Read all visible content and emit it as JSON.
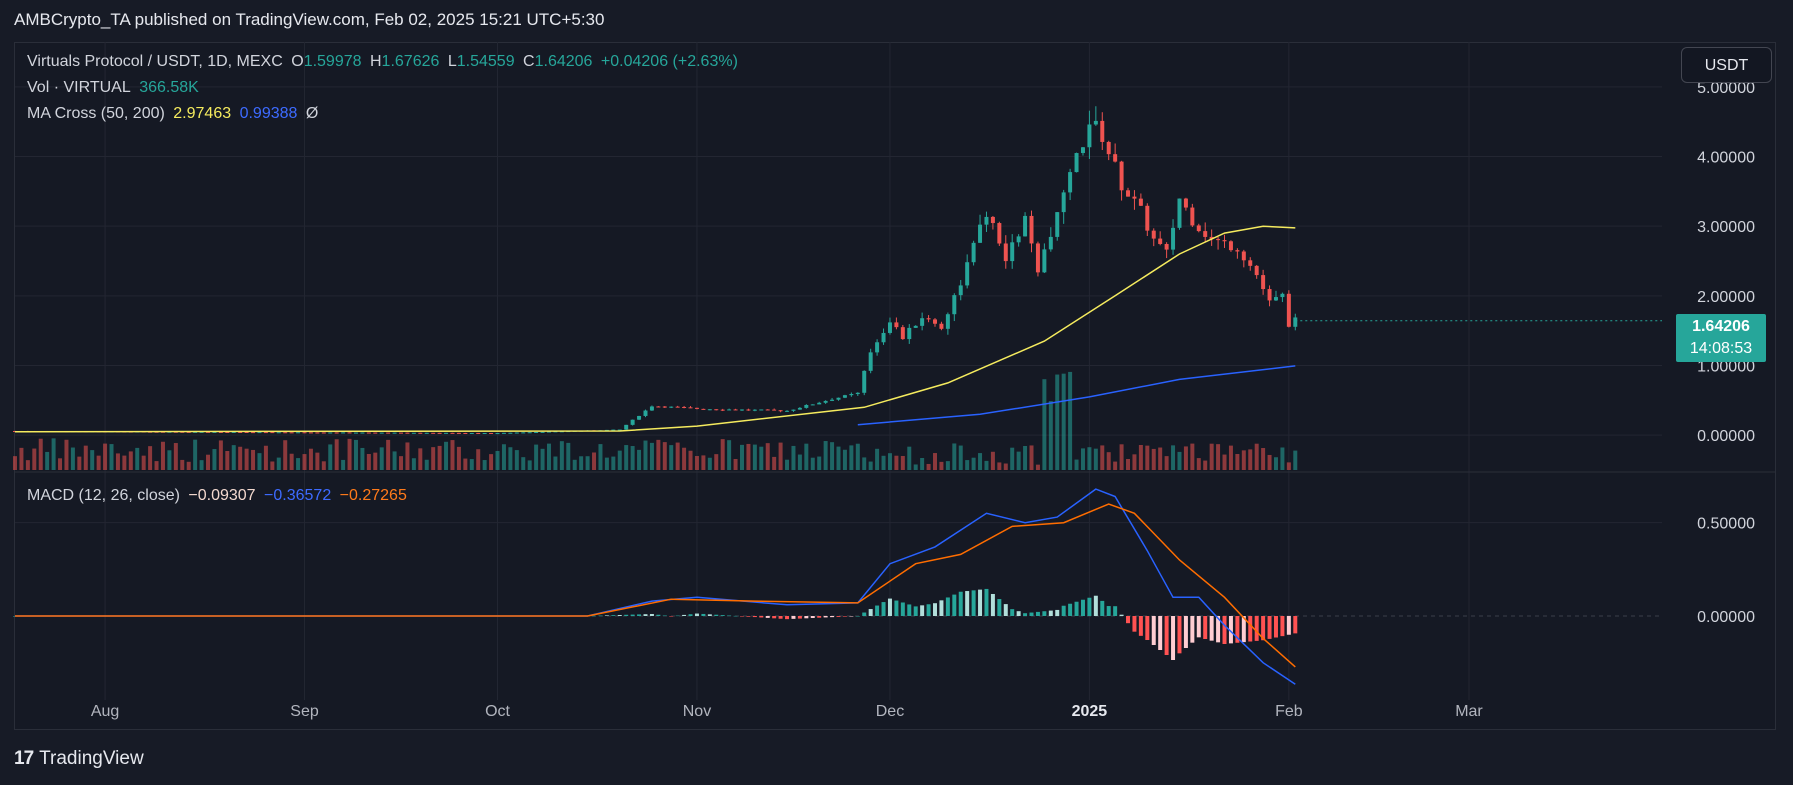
{
  "header": {
    "publisher": "AMBCrypto_TA published on TradingView.com, Feb 02, 2025 15:21 UTC+5:30"
  },
  "legend": {
    "symbol": "Virtuals Protocol / USDT, 1D, MEXC",
    "o_label": "O",
    "o": "1.59978",
    "h_label": "H",
    "h": "1.67626",
    "l_label": "L",
    "l": "1.54559",
    "c_label": "C",
    "c": "1.64206",
    "change": "+0.04206 (+2.63%)",
    "vol_label": "Vol · VIRTUAL",
    "vol": "366.58K",
    "ma_label": "MA Cross (50, 200)",
    "ma50": "2.97463",
    "ma200": "0.99388",
    "ma_extra": "Ø",
    "macd_label": "MACD (12, 26, close)",
    "macd_hist": "−0.09307",
    "macd_line": "−0.36572",
    "macd_signal": "−0.27265"
  },
  "currency_button": "USDT",
  "price_tag": {
    "price": "1.64206",
    "countdown": "14:08:53"
  },
  "footer": {
    "brand": "TradingView",
    "logo_text": "17"
  },
  "colors": {
    "up": "#26a69a",
    "down": "#ef5350",
    "ma50": "#f5eb5e",
    "ma200": "#2962ff",
    "macd": "#2962ff",
    "signal": "#ff6d00"
  },
  "chart_data": [
    {
      "type": "candlestick",
      "title": "Virtuals Protocol / USDT, 1D, MEXC",
      "y_ticks": [
        "5.00000",
        "4.00000",
        "3.00000",
        "2.00000",
        "1.00000",
        "0.00000"
      ],
      "y_tick_values": [
        5,
        4,
        3,
        2,
        1,
        0
      ],
      "ylim": [
        -0.5,
        5.5
      ],
      "x_ticks": [
        {
          "label": "Aug",
          "date": "2024-08-01"
        },
        {
          "label": "Sep",
          "date": "2024-09-01"
        },
        {
          "label": "Oct",
          "date": "2024-10-01"
        },
        {
          "label": "Nov",
          "date": "2024-11-01"
        },
        {
          "label": "Dec",
          "date": "2024-12-01"
        },
        {
          "label": "2025",
          "date": "2025-01-01"
        },
        {
          "label": "Feb",
          "date": "2025-02-01"
        },
        {
          "label": "Mar",
          "date": "2025-03-01"
        }
      ],
      "x_range": [
        "2024-07-18",
        "2025-03-31"
      ],
      "price_path": [
        [
          "2024-07-18",
          0.06
        ],
        [
          "2024-09-01",
          0.04
        ],
        [
          "2024-10-01",
          0.03
        ],
        [
          "2024-10-20",
          0.08
        ],
        [
          "2024-10-25",
          0.42
        ],
        [
          "2024-11-01",
          0.38
        ],
        [
          "2024-11-15",
          0.35
        ],
        [
          "2024-11-22",
          0.52
        ],
        [
          "2024-11-26",
          0.6
        ],
        [
          "2024-11-28",
          1.2
        ],
        [
          "2024-12-01",
          1.65
        ],
        [
          "2024-12-03",
          1.4
        ],
        [
          "2024-12-06",
          1.7
        ],
        [
          "2024-12-09",
          1.55
        ],
        [
          "2024-12-12",
          2.2
        ],
        [
          "2024-12-16",
          3.2
        ],
        [
          "2024-12-19",
          2.5
        ],
        [
          "2024-12-22",
          3.1
        ],
        [
          "2024-12-24",
          2.3
        ],
        [
          "2024-12-27",
          3.2
        ],
        [
          "2024-12-29",
          3.7
        ],
        [
          "2025-01-01",
          4.5
        ],
        [
          "2025-01-03",
          4.3
        ],
        [
          "2025-01-06",
          3.6
        ],
        [
          "2025-01-09",
          3.2
        ],
        [
          "2025-01-11",
          2.8
        ],
        [
          "2025-01-13",
          2.6
        ],
        [
          "2025-01-15",
          3.4
        ],
        [
          "2025-01-17",
          3.1
        ],
        [
          "2025-01-20",
          2.8
        ],
        [
          "2025-01-24",
          2.7
        ],
        [
          "2025-01-27",
          2.3
        ],
        [
          "2025-01-29",
          1.9
        ],
        [
          "2025-01-31",
          2.0
        ],
        [
          "2025-02-01",
          1.6
        ],
        [
          "2025-02-02",
          1.64206
        ]
      ],
      "ma50_path": [
        [
          "2024-07-18",
          0.05
        ],
        [
          "2024-10-20",
          0.06
        ],
        [
          "2024-11-01",
          0.13
        ],
        [
          "2024-11-27",
          0.4
        ],
        [
          "2024-12-10",
          0.75
        ],
        [
          "2024-12-25",
          1.35
        ],
        [
          "2025-01-05",
          2.0
        ],
        [
          "2025-01-15",
          2.6
        ],
        [
          "2025-01-22",
          2.9
        ],
        [
          "2025-01-28",
          3.0
        ],
        [
          "2025-02-02",
          2.97463
        ]
      ],
      "ma200_path": [
        [
          "2024-11-26",
          0.15
        ],
        [
          "2024-12-15",
          0.3
        ],
        [
          "2025-01-01",
          0.55
        ],
        [
          "2025-01-15",
          0.8
        ],
        [
          "2025-02-02",
          0.99388
        ]
      ],
      "volume": {
        "last": "366.58K"
      }
    },
    {
      "type": "line",
      "title": "MACD (12, 26, close)",
      "y_ticks": [
        "0.50000",
        "0.00000"
      ],
      "y_tick_values": [
        0.5,
        0
      ],
      "ylim": [
        -0.45,
        0.75
      ],
      "series": [
        {
          "name": "MACD",
          "color": "#2962ff",
          "points": [
            [
              "2024-07-18",
              0.0
            ],
            [
              "2024-10-15",
              0.0
            ],
            [
              "2024-10-25",
              0.08
            ],
            [
              "2024-11-01",
              0.1
            ],
            [
              "2024-11-15",
              0.06
            ],
            [
              "2024-11-26",
              0.07
            ],
            [
              "2024-12-01",
              0.28
            ],
            [
              "2024-12-08",
              0.37
            ],
            [
              "2024-12-16",
              0.55
            ],
            [
              "2024-12-22",
              0.5
            ],
            [
              "2024-12-27",
              0.53
            ],
            [
              "2025-01-02",
              0.68
            ],
            [
              "2025-01-05",
              0.64
            ],
            [
              "2025-01-10",
              0.35
            ],
            [
              "2025-01-14",
              0.1
            ],
            [
              "2025-01-18",
              0.1
            ],
            [
              "2025-01-22",
              -0.05
            ],
            [
              "2025-01-28",
              -0.25
            ],
            [
              "2025-02-02",
              -0.36572
            ]
          ]
        },
        {
          "name": "Signal",
          "color": "#ff6d00",
          "points": [
            [
              "2024-07-18",
              0.0
            ],
            [
              "2024-10-15",
              0.0
            ],
            [
              "2024-10-28",
              0.09
            ],
            [
              "2024-11-10",
              0.08
            ],
            [
              "2024-11-26",
              0.07
            ],
            [
              "2024-12-05",
              0.28
            ],
            [
              "2024-12-12",
              0.33
            ],
            [
              "2024-12-20",
              0.48
            ],
            [
              "2024-12-28",
              0.5
            ],
            [
              "2025-01-04",
              0.6
            ],
            [
              "2025-01-08",
              0.55
            ],
            [
              "2025-01-15",
              0.3
            ],
            [
              "2025-01-22",
              0.1
            ],
            [
              "2025-01-28",
              -0.12
            ],
            [
              "2025-02-02",
              -0.27265
            ]
          ]
        }
      ],
      "histogram_last": -0.09307
    }
  ]
}
